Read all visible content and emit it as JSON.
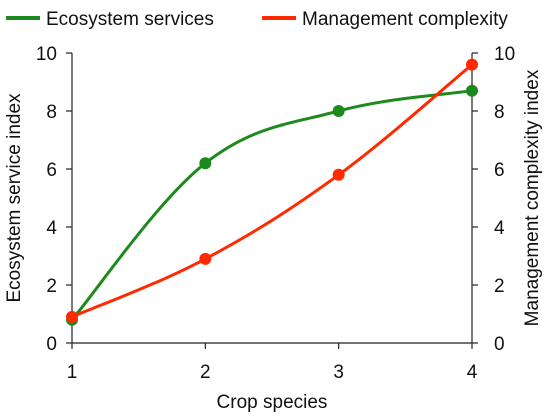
{
  "chart_data": {
    "type": "line",
    "x": [
      1,
      2,
      3,
      4
    ],
    "xticks": [
      "1",
      "2",
      "3",
      "4"
    ],
    "xlabel": "Crop species",
    "ylabel_left": "Ecosystem service index",
    "ylabel_right": "Management complexity index",
    "ylim_left": [
      0,
      10
    ],
    "ylim_right": [
      0,
      10
    ],
    "yticks_left": [
      "0",
      "2",
      "4",
      "6",
      "8",
      "10"
    ],
    "yticks_right": [
      "0",
      "2",
      "4",
      "6",
      "8",
      "10"
    ],
    "xlim": [
      1,
      4
    ],
    "grid": false,
    "legend_position": "top",
    "series": [
      {
        "name": "Ecosystem services",
        "axis": "left",
        "color": "#1e8a1e",
        "values": [
          0.8,
          6.2,
          8.0,
          8.7
        ]
      },
      {
        "name": "Management complexity",
        "axis": "right",
        "color": "#ff2a00",
        "values": [
          0.9,
          2.9,
          5.8,
          9.6
        ]
      }
    ]
  }
}
